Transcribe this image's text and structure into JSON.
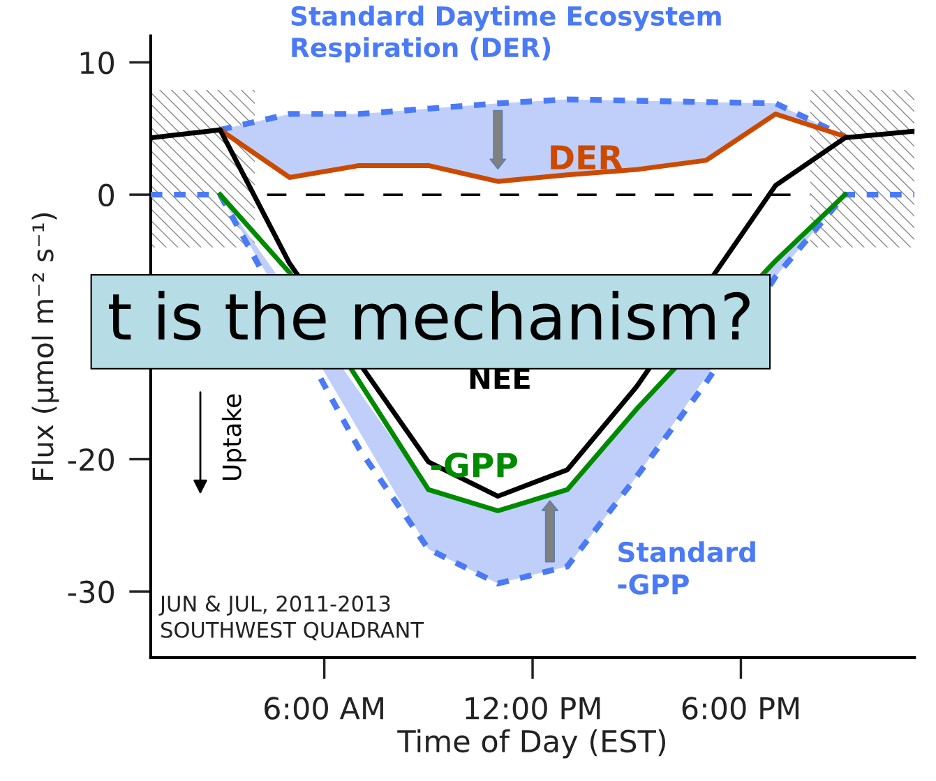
{
  "chart_data": {
    "type": "line",
    "xlabel": "Time of Day (EST)",
    "ylabel": "Flux (μmol m⁻² s⁻¹)",
    "xlim": [
      1,
      23
    ],
    "xticks": [
      {
        "value": 6,
        "label": "6:00 AM"
      },
      {
        "value": 12,
        "label": "12:00 PM"
      },
      {
        "value": 18,
        "label": "6:00 PM"
      }
    ],
    "ylim": [
      -35,
      12
    ],
    "yticks": [
      -30,
      -20,
      0,
      10
    ],
    "series": [
      {
        "name": "Standard Daytime Ecosystem Respiration (DER)",
        "color": "#4a7af5",
        "line_style": "dashed",
        "x": [
          3,
          5,
          7,
          9,
          11,
          13,
          15,
          17,
          19,
          21
        ],
        "values": [
          4.9,
          6.1,
          6.1,
          6.5,
          6.9,
          7.2,
          7.1,
          7.0,
          6.9,
          4.4
        ]
      },
      {
        "name": "DER",
        "color": "#cc4a00",
        "line_style": "solid",
        "x": [
          3,
          5,
          7,
          9,
          11,
          13,
          15,
          17,
          19,
          21
        ],
        "values": [
          4.9,
          1.3,
          2.2,
          2.2,
          1.0,
          1.5,
          1.9,
          2.6,
          6.1,
          4.4
        ],
        "lower": [
          4.9,
          1.3,
          2.2,
          2.2,
          1.0,
          1.5,
          1.9,
          2.6,
          6.1,
          4.4
        ],
        "upper": [
          4.9,
          6.1,
          6.1,
          6.5,
          6.9,
          7.2,
          7.1,
          7.0,
          6.9,
          4.4
        ]
      },
      {
        "name": "NEE",
        "color": "#000000",
        "line_style": "solid",
        "x": [
          1,
          3,
          5,
          9,
          11,
          13,
          15,
          19,
          21,
          23
        ],
        "values": [
          4.3,
          4.9,
          -5.2,
          -20.2,
          -22.8,
          -20.8,
          -14.5,
          0.7,
          4.3,
          4.8
        ]
      },
      {
        "name": "Standard -GPP",
        "color": "#4a7af5",
        "line_style": "dashed",
        "x": [
          1,
          3,
          7,
          9,
          11,
          13,
          15,
          17,
          19,
          21,
          23
        ],
        "values": [
          0,
          0,
          -19.2,
          -26.8,
          -29.4,
          -28.1,
          -21.3,
          -14.2,
          -6.2,
          0,
          0
        ]
      },
      {
        "name": "-GPP",
        "color": "#008a00",
        "line_style": "solid",
        "x": [
          3,
          5,
          9,
          11,
          13,
          15,
          19,
          21
        ],
        "values": [
          0,
          -5.9,
          -22.3,
          -23.9,
          -22.3,
          -16.2,
          -5.0,
          0
        ],
        "lower": [
          0,
          null,
          -26.8,
          -29.4,
          -28.1,
          -21.3,
          -6.2,
          0
        ],
        "upper": [
          0,
          null,
          -22.3,
          -23.9,
          -22.3,
          -16.2,
          -5.0,
          0
        ]
      }
    ],
    "ref_lines": [
      {
        "axis": "y",
        "value": 0,
        "color": "#000000",
        "line_style": "dashed"
      }
    ],
    "bands": [
      {
        "axis": "x",
        "from": 1,
        "to": 4,
        "color": "#888888"
      },
      {
        "axis": "x",
        "from": 20,
        "to": 23,
        "color": "#888888"
      }
    ],
    "annotations": [
      "JUN & JUL, 2011-2013\nSOUTHWEST QUADRANT",
      "Uptake",
      "t is the mechanism?"
    ],
    "grid": false,
    "legend": false,
    "marker": "none"
  }
}
